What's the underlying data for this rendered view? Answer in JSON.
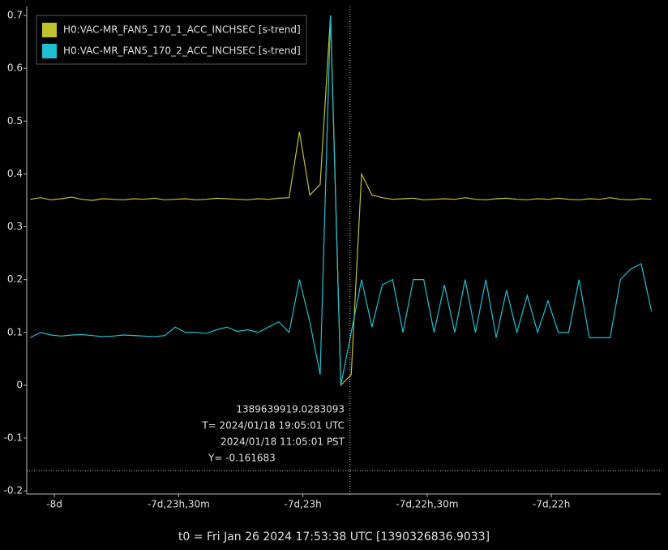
{
  "chart_data": {
    "type": "line",
    "xlim": [
      -691600,
      -682417
    ],
    "ylim": [
      -0.206,
      0.717
    ],
    "xticks": [
      {
        "value": -691200,
        "label": "-8d"
      },
      {
        "value": -689400,
        "label": "-7d,23h,30m"
      },
      {
        "value": -687600,
        "label": "-7d,23h"
      },
      {
        "value": -685800,
        "label": "-7d,22h,30m"
      },
      {
        "value": -684000,
        "label": "-7d,22h"
      }
    ],
    "yticks": [
      -0.2,
      -0.1,
      0,
      0.1,
      0.2,
      0.3,
      0.4,
      0.5,
      0.6,
      0.7
    ],
    "grid": false,
    "legend": "upper left",
    "x": [
      -691550,
      -691400,
      -691250,
      -691100,
      -690950,
      -690800,
      -690650,
      -690500,
      -690350,
      -690200,
      -690050,
      -689900,
      -689750,
      -689600,
      -689450,
      -689300,
      -689150,
      -689000,
      -688850,
      -688700,
      -688550,
      -688400,
      -688250,
      -688100,
      -687950,
      -687800,
      -687650,
      -687500,
      -687350,
      -687200,
      -687050,
      -686900,
      -686750,
      -686600,
      -686450,
      -686300,
      -686150,
      -686000,
      -685850,
      -685700,
      -685550,
      -685400,
      -685250,
      -685100,
      -684950,
      -684800,
      -684650,
      -684500,
      -684350,
      -684200,
      -684050,
      -683900,
      -683750,
      -683600,
      -683450,
      -683300,
      -683150,
      -683000,
      -682850,
      -682700,
      -682550
    ],
    "series": [
      {
        "name": "H0:VAC-MR_FAN5_170_1_ACC_INCHSEC [s-trend]",
        "color": "#c0c22c",
        "values": [
          0.352,
          0.355,
          0.351,
          0.353,
          0.356,
          0.352,
          0.35,
          0.353,
          0.352,
          0.351,
          0.353,
          0.352,
          0.354,
          0.351,
          0.352,
          0.353,
          0.351,
          0.352,
          0.354,
          0.353,
          0.352,
          0.351,
          0.353,
          0.352,
          0.354,
          0.355,
          0.48,
          0.36,
          0.38,
          0.7,
          0.0,
          0.02,
          0.4,
          0.36,
          0.355,
          0.352,
          0.353,
          0.354,
          0.351,
          0.352,
          0.353,
          0.352,
          0.355,
          0.352,
          0.351,
          0.353,
          0.354,
          0.352,
          0.351,
          0.353,
          0.352,
          0.354,
          0.352,
          0.351,
          0.353,
          0.352,
          0.355,
          0.352,
          0.351,
          0.353,
          0.352
        ]
      },
      {
        "name": "H0:VAC-MR_FAN5_170_2_ACC_INCHSEC [s-trend]",
        "color": "#1ec0d2",
        "values": [
          0.09,
          0.1,
          0.095,
          0.093,
          0.095,
          0.096,
          0.094,
          0.092,
          0.093,
          0.095,
          0.094,
          0.093,
          0.092,
          0.094,
          0.11,
          0.1,
          0.1,
          0.098,
          0.105,
          0.11,
          0.102,
          0.105,
          0.1,
          0.11,
          0.12,
          0.1,
          0.2,
          0.12,
          0.02,
          0.7,
          0.0,
          0.1,
          0.2,
          0.11,
          0.19,
          0.2,
          0.1,
          0.2,
          0.2,
          0.1,
          0.19,
          0.1,
          0.2,
          0.1,
          0.2,
          0.09,
          0.18,
          0.1,
          0.17,
          0.1,
          0.16,
          0.1,
          0.1,
          0.2,
          0.09,
          0.09,
          0.09,
          0.2,
          0.22,
          0.23,
          0.14
        ]
      }
    ],
    "cursor_x": -686917.875,
    "cursor_y": -0.161683,
    "cursor_labels": [
      "1389639919.0283093",
      "T= 2024/01/18 19:05:01 UTC",
      "2024/01/18 11:05:01 PST",
      "Y= -0.161683"
    ],
    "footer": "t0 = Fri Jan 26 2024 17:53:38 UTC [1390326836.9033]"
  }
}
